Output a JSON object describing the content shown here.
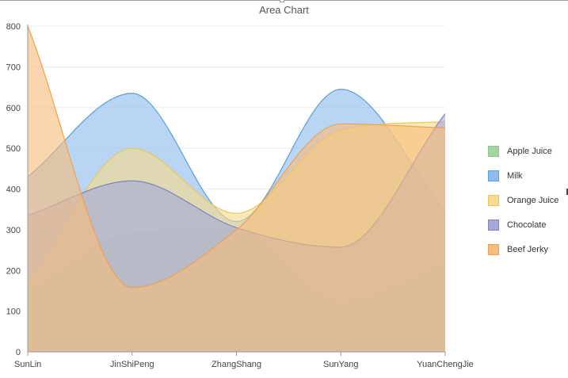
{
  "chart_data": {
    "type": "area",
    "title": "Area Chart",
    "categories": [
      "SunLin",
      "JinShiPeng",
      "ZhangShang",
      "SunYang",
      "YuanChengJie"
    ],
    "ylim": [
      0,
      800
    ],
    "yticks": [
      0,
      100,
      200,
      300,
      400,
      500,
      600,
      700,
      800
    ],
    "grid": true,
    "legend_position": "right",
    "series": [
      {
        "name": "Apple Juice",
        "values": [
          150,
          290,
          300,
          125,
          220
        ],
        "color": "#a5d5a0",
        "stroke": "#8cc88a"
      },
      {
        "name": "Milk",
        "values": [
          430,
          635,
          320,
          645,
          345
        ],
        "color": "#8dbdee",
        "stroke": "#5a9ee0"
      },
      {
        "name": "Orange Juice",
        "values": [
          165,
          500,
          340,
          545,
          565
        ],
        "color": "#f6dc8a",
        "stroke": "#e8c65a"
      },
      {
        "name": "Chocolate",
        "values": [
          335,
          420,
          305,
          257,
          585
        ],
        "color": "#a7a9d6",
        "stroke": "#7f83c4"
      },
      {
        "name": "Beef Jerky",
        "values": [
          800,
          158,
          300,
          560,
          550
        ],
        "color": "#f7bd7d",
        "stroke": "#f0a050"
      }
    ]
  }
}
